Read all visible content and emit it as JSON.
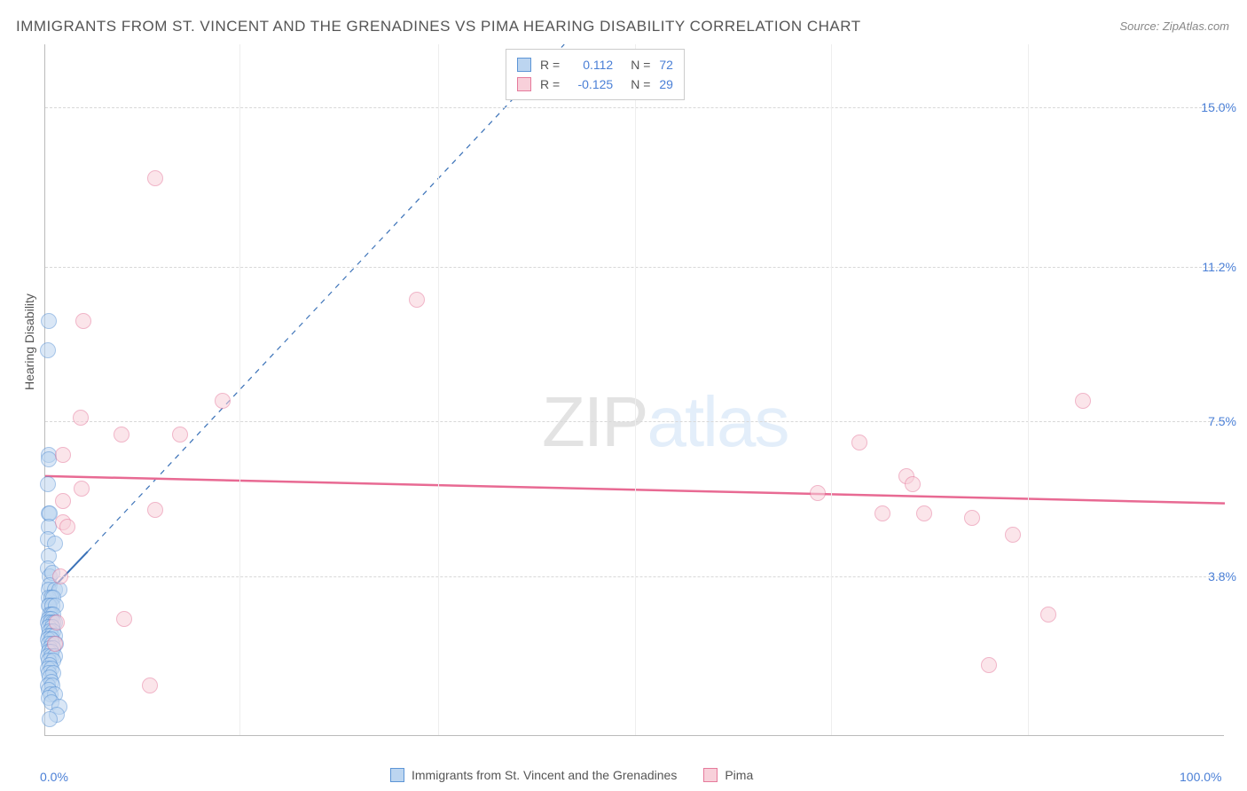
{
  "title": "IMMIGRANTS FROM ST. VINCENT AND THE GRENADINES VS PIMA HEARING DISABILITY CORRELATION CHART",
  "source": "Source: ZipAtlas.com",
  "watermark": {
    "zip": "ZIP",
    "atlas": "atlas"
  },
  "chart": {
    "type": "scatter",
    "background_color": "#ffffff",
    "grid_color": "#d8d8d8",
    "xlim": [
      0,
      100
    ],
    "ylim": [
      0,
      16.5
    ],
    "y_axis_label": "Hearing Disability",
    "x_ticks": [
      {
        "v": 0.0,
        "label": "0.0%"
      },
      {
        "v": 100.0,
        "label": "100.0%"
      }
    ],
    "y_ticks": [
      {
        "v": 3.8,
        "label": "3.8%"
      },
      {
        "v": 7.5,
        "label": "7.5%"
      },
      {
        "v": 11.2,
        "label": "11.2%"
      },
      {
        "v": 15.0,
        "label": "15.0%"
      }
    ],
    "x_grid_positions": [
      16.5,
      33.3,
      50.0,
      66.6,
      83.3
    ],
    "marker_radius": 9,
    "marker_opacity": 0.55,
    "point_border_width": 1.2,
    "series": [
      {
        "name": "Immigrants from St. Vincent and the Grenadines",
        "color_fill": "#bcd5f0",
        "color_stroke": "#5d95d6",
        "R": "0.112",
        "N": "72",
        "trend": {
          "x1": 0.2,
          "y1": 3.4,
          "x2": 3.6,
          "y2": 4.4,
          "color": "#3b72b8",
          "width": 2,
          "dash": "none",
          "extend_dash": true,
          "ext_x2": 44,
          "ext_y2": 16.5
        },
        "points": [
          {
            "x": 0.3,
            "y": 9.9
          },
          {
            "x": 0.25,
            "y": 9.2
          },
          {
            "x": 0.3,
            "y": 6.7
          },
          {
            "x": 0.3,
            "y": 6.6
          },
          {
            "x": 0.2,
            "y": 6.0
          },
          {
            "x": 0.3,
            "y": 5.3
          },
          {
            "x": 0.4,
            "y": 5.3
          },
          {
            "x": 0.3,
            "y": 5.0
          },
          {
            "x": 0.25,
            "y": 4.7
          },
          {
            "x": 0.85,
            "y": 4.6
          },
          {
            "x": 0.3,
            "y": 4.3
          },
          {
            "x": 0.2,
            "y": 4.0
          },
          {
            "x": 0.4,
            "y": 3.8
          },
          {
            "x": 0.6,
            "y": 3.9
          },
          {
            "x": 0.4,
            "y": 3.6
          },
          {
            "x": 0.3,
            "y": 3.5
          },
          {
            "x": 0.8,
            "y": 3.5
          },
          {
            "x": 1.2,
            "y": 3.5
          },
          {
            "x": 0.3,
            "y": 3.3
          },
          {
            "x": 0.5,
            "y": 3.3
          },
          {
            "x": 0.7,
            "y": 3.3
          },
          {
            "x": 0.4,
            "y": 3.1
          },
          {
            "x": 0.3,
            "y": 3.1
          },
          {
            "x": 0.6,
            "y": 3.1
          },
          {
            "x": 0.9,
            "y": 3.1
          },
          {
            "x": 0.35,
            "y": 2.9
          },
          {
            "x": 0.5,
            "y": 2.9
          },
          {
            "x": 0.7,
            "y": 2.9
          },
          {
            "x": 0.3,
            "y": 2.8
          },
          {
            "x": 0.5,
            "y": 2.8
          },
          {
            "x": 0.25,
            "y": 2.7
          },
          {
            "x": 0.45,
            "y": 2.7
          },
          {
            "x": 0.65,
            "y": 2.7
          },
          {
            "x": 0.85,
            "y": 2.7
          },
          {
            "x": 0.3,
            "y": 2.6
          },
          {
            "x": 0.6,
            "y": 2.6
          },
          {
            "x": 0.4,
            "y": 2.5
          },
          {
            "x": 0.7,
            "y": 2.5
          },
          {
            "x": 0.3,
            "y": 2.4
          },
          {
            "x": 0.55,
            "y": 2.4
          },
          {
            "x": 0.8,
            "y": 2.4
          },
          {
            "x": 0.25,
            "y": 2.3
          },
          {
            "x": 0.5,
            "y": 2.3
          },
          {
            "x": 0.3,
            "y": 2.2
          },
          {
            "x": 0.6,
            "y": 2.2
          },
          {
            "x": 0.9,
            "y": 2.2
          },
          {
            "x": 0.35,
            "y": 2.1
          },
          {
            "x": 0.7,
            "y": 2.1
          },
          {
            "x": 0.3,
            "y": 2.0
          },
          {
            "x": 0.55,
            "y": 2.0
          },
          {
            "x": 0.25,
            "y": 1.9
          },
          {
            "x": 0.5,
            "y": 1.9
          },
          {
            "x": 0.8,
            "y": 1.9
          },
          {
            "x": 0.3,
            "y": 1.8
          },
          {
            "x": 0.65,
            "y": 1.8
          },
          {
            "x": 0.4,
            "y": 1.7
          },
          {
            "x": 0.25,
            "y": 1.6
          },
          {
            "x": 0.55,
            "y": 1.6
          },
          {
            "x": 0.3,
            "y": 1.5
          },
          {
            "x": 0.7,
            "y": 1.5
          },
          {
            "x": 0.35,
            "y": 1.4
          },
          {
            "x": 0.5,
            "y": 1.3
          },
          {
            "x": 0.25,
            "y": 1.2
          },
          {
            "x": 0.6,
            "y": 1.2
          },
          {
            "x": 0.3,
            "y": 1.1
          },
          {
            "x": 0.45,
            "y": 1.0
          },
          {
            "x": 0.8,
            "y": 1.0
          },
          {
            "x": 0.3,
            "y": 0.9
          },
          {
            "x": 0.5,
            "y": 0.8
          },
          {
            "x": 1.2,
            "y": 0.7
          },
          {
            "x": 1.0,
            "y": 0.5
          },
          {
            "x": 0.4,
            "y": 0.4
          }
        ]
      },
      {
        "name": "Pima",
        "color_fill": "#f8d0da",
        "color_stroke": "#e67a9c",
        "R": "-0.125",
        "N": "29",
        "trend": {
          "x1": 0,
          "y1": 6.2,
          "x2": 100,
          "y2": 5.55,
          "color": "#e86a93",
          "width": 2.5,
          "dash": "none"
        },
        "points": [
          {
            "x": 9.3,
            "y": 13.3
          },
          {
            "x": 3.2,
            "y": 9.9
          },
          {
            "x": 31.5,
            "y": 10.4
          },
          {
            "x": 15.0,
            "y": 8.0
          },
          {
            "x": 3.0,
            "y": 7.6
          },
          {
            "x": 11.4,
            "y": 7.2
          },
          {
            "x": 6.5,
            "y": 7.2
          },
          {
            "x": 6.7,
            "y": 2.8
          },
          {
            "x": 1.5,
            "y": 6.7
          },
          {
            "x": 3.1,
            "y": 5.9
          },
          {
            "x": 1.5,
            "y": 5.6
          },
          {
            "x": 1.5,
            "y": 5.1
          },
          {
            "x": 1.9,
            "y": 5.0
          },
          {
            "x": 9.3,
            "y": 5.4
          },
          {
            "x": 1.3,
            "y": 3.8
          },
          {
            "x": 8.9,
            "y": 1.2
          },
          {
            "x": 65.5,
            "y": 5.8
          },
          {
            "x": 69.0,
            "y": 7.0
          },
          {
            "x": 71.0,
            "y": 5.3
          },
          {
            "x": 88.0,
            "y": 8.0
          },
          {
            "x": 73.0,
            "y": 6.2
          },
          {
            "x": 73.5,
            "y": 6.0
          },
          {
            "x": 74.5,
            "y": 5.3
          },
          {
            "x": 78.6,
            "y": 5.2
          },
          {
            "x": 82.0,
            "y": 4.8
          },
          {
            "x": 85.0,
            "y": 2.9
          },
          {
            "x": 80.0,
            "y": 1.7
          },
          {
            "x": 1.0,
            "y": 2.7
          },
          {
            "x": 0.8,
            "y": 2.2
          }
        ]
      }
    ]
  },
  "legend_top_fields": {
    "r_label": "R =",
    "n_label": "N ="
  },
  "colors": {
    "axis_text": "#4a7fd6",
    "label_text": "#555555"
  }
}
